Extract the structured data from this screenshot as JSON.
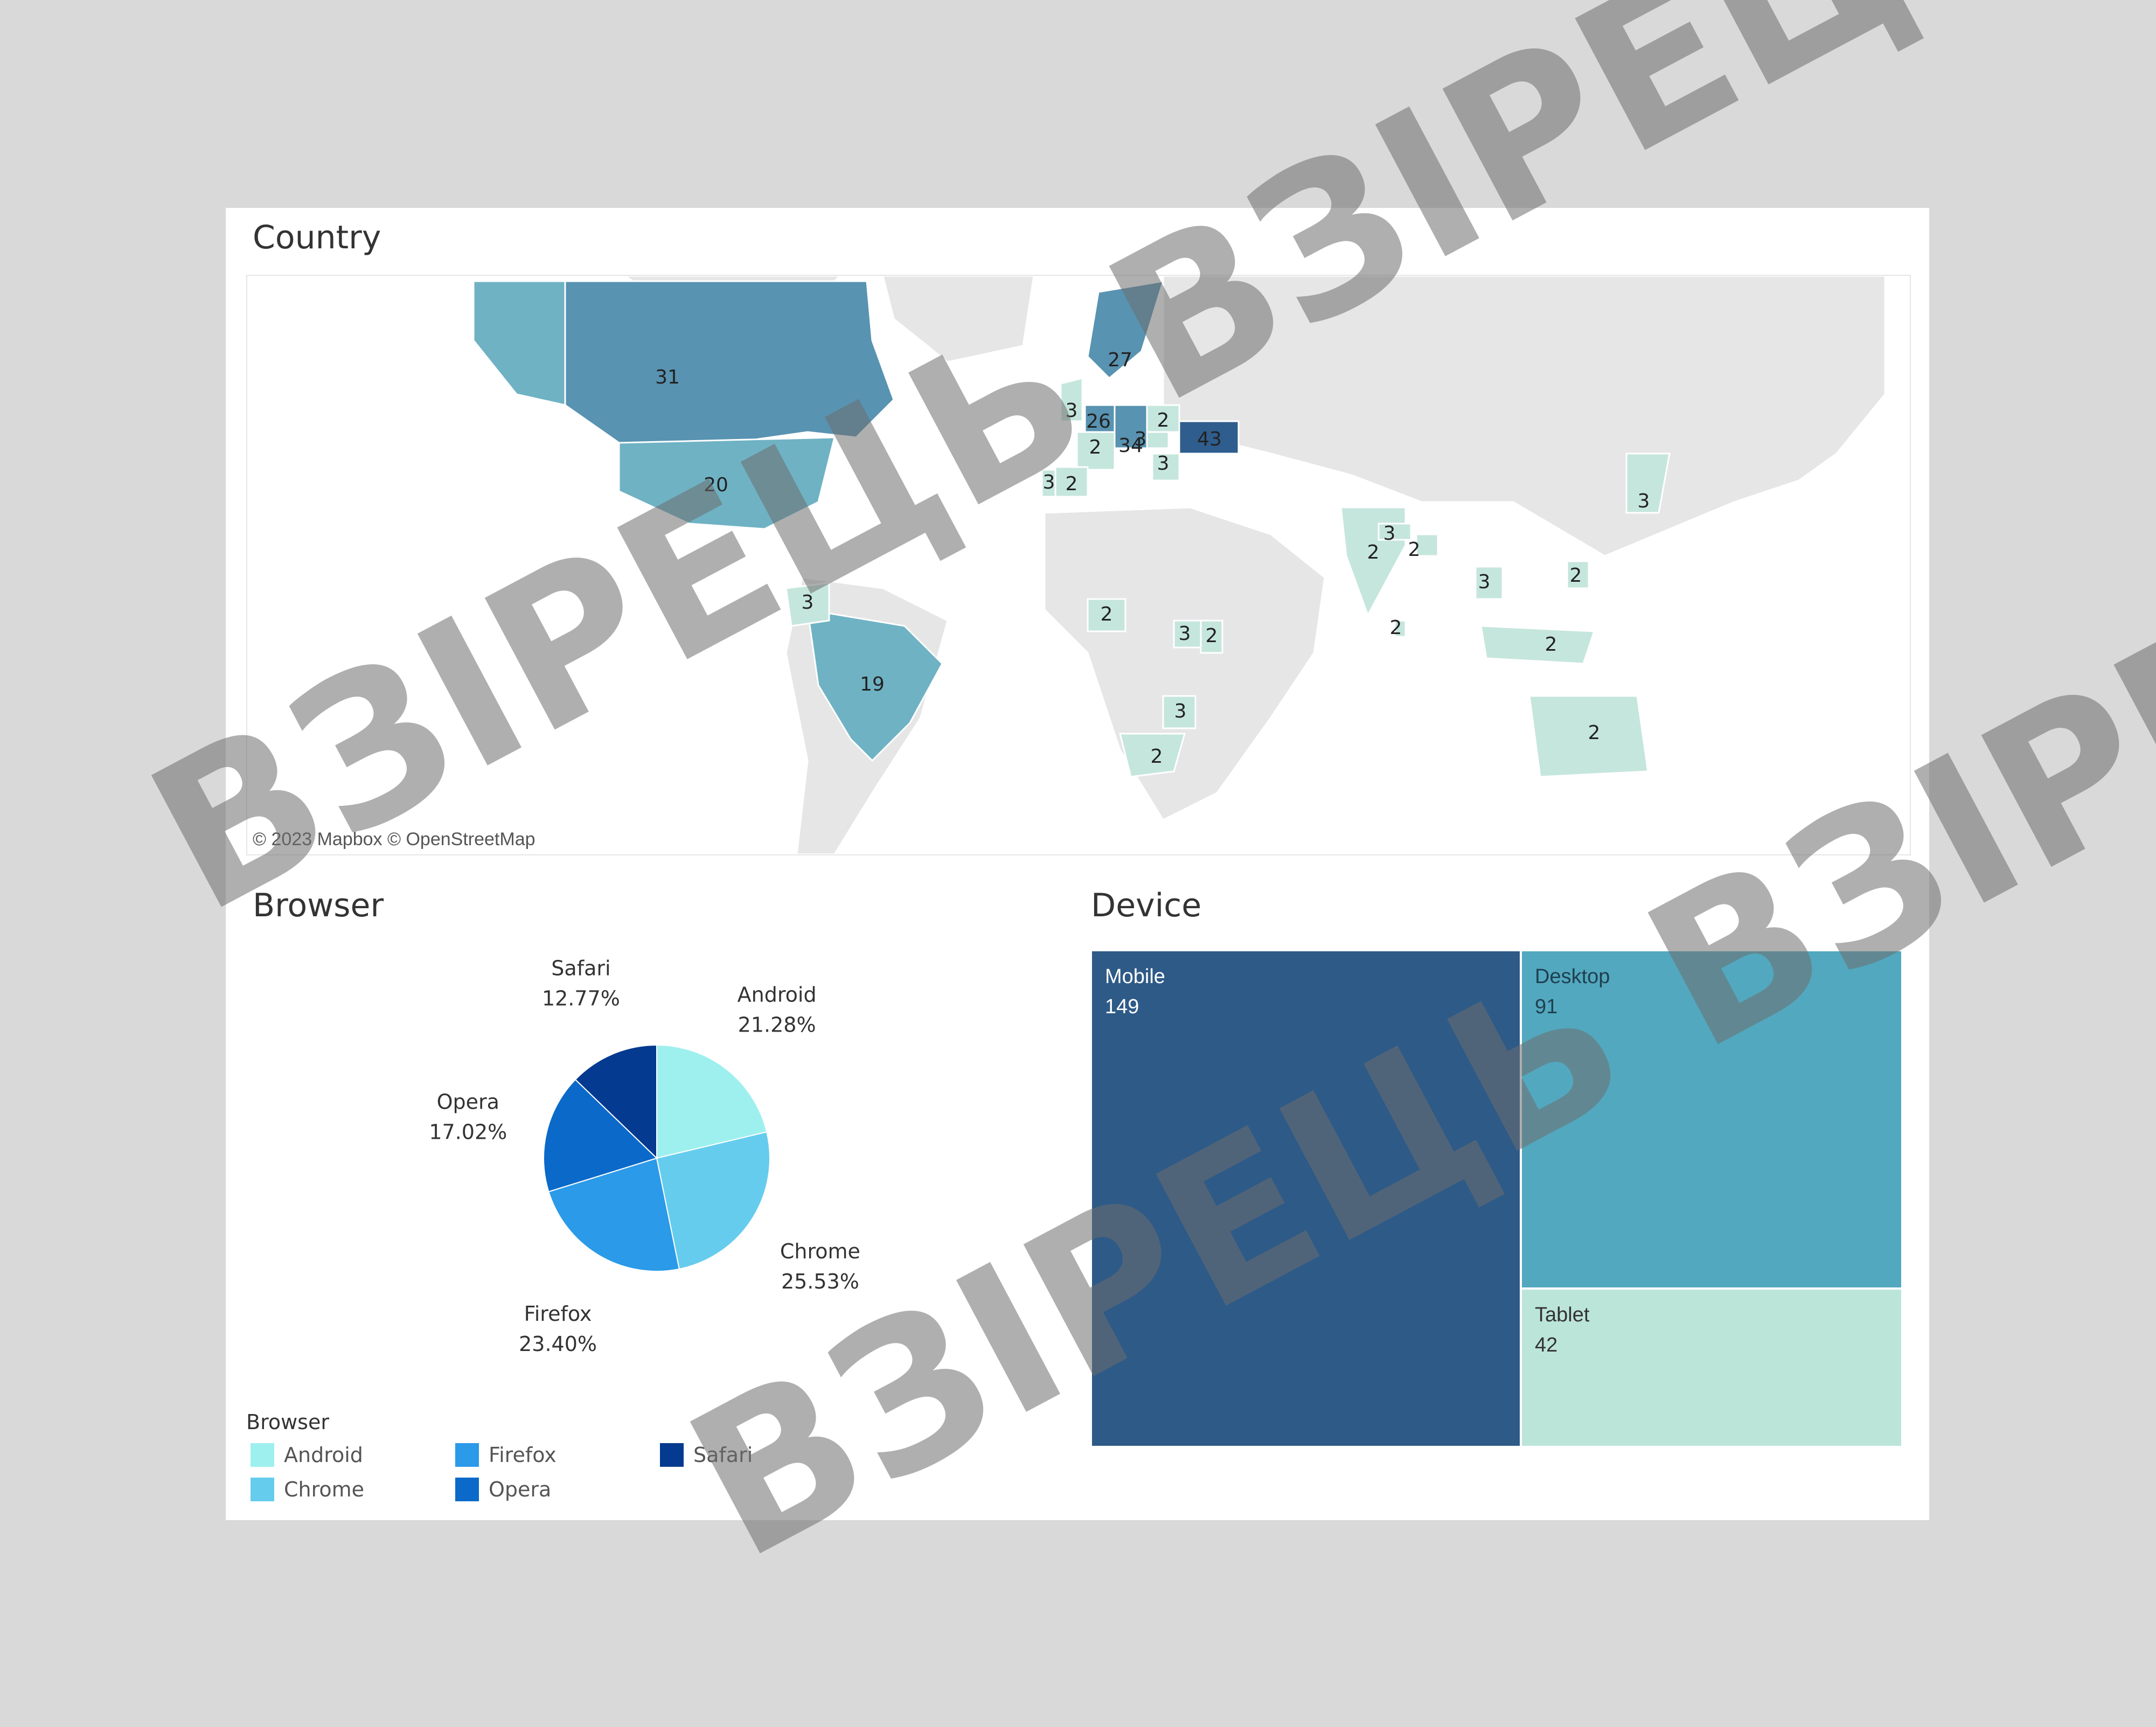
{
  "colors": {
    "page_bg": "#d9d9d9",
    "panel_bg": "#ffffff",
    "land_base": "#e6e6e6",
    "ocean": "#ffffff"
  },
  "chart_data": [
    {
      "type": "map",
      "title": "Country",
      "attribution": "© 2023 Mapbox  © OpenStreetMap",
      "color_scale": [
        "#c5e6dc",
        "#6fb2c4",
        "#2f5d8d"
      ],
      "labels": [
        {
          "country": "Canada",
          "value": 31
        },
        {
          "country": "United States",
          "value": 20
        },
        {
          "country": "Brazil",
          "value": 19
        },
        {
          "country": "Colombia",
          "value": 3
        },
        {
          "country": "Norway",
          "value": 27
        },
        {
          "country": "United Kingdom",
          "value": 3
        },
        {
          "country": "Netherlands",
          "value": 26
        },
        {
          "country": "Germany",
          "value": 34
        },
        {
          "country": "France",
          "value": 2
        },
        {
          "country": "Poland",
          "value": 2
        },
        {
          "country": "Czechia",
          "value": 3
        },
        {
          "country": "Ukraine",
          "value": 43
        },
        {
          "country": "Balkans",
          "value": 3
        },
        {
          "country": "Portugal",
          "value": 3
        },
        {
          "country": "Spain",
          "value": 2
        },
        {
          "country": "Nigeria",
          "value": 2
        },
        {
          "country": "Uganda",
          "value": 3
        },
        {
          "country": "Kenya",
          "value": 2
        },
        {
          "country": "Zimbabwe",
          "value": 3
        },
        {
          "country": "South Africa",
          "value": 2
        },
        {
          "country": "India",
          "value": 2
        },
        {
          "country": "Nepal",
          "value": 3
        },
        {
          "country": "Bangladesh",
          "value": 2
        },
        {
          "country": "Sri Lanka",
          "value": 2
        },
        {
          "country": "Thailand",
          "value": 3
        },
        {
          "country": "Philippines",
          "value": 2
        },
        {
          "country": "Indonesia",
          "value": 2
        },
        {
          "country": "Japan",
          "value": 3
        },
        {
          "country": "Australia",
          "value": 2
        }
      ]
    },
    {
      "type": "pie",
      "title": "Browser",
      "legend_title": "Browser",
      "legend_placement": "bottom-left",
      "slices": [
        {
          "name": "Android",
          "percent_label": "21.28%",
          "value": 21.28,
          "color": "#9ef0ef"
        },
        {
          "name": "Chrome",
          "percent_label": "25.53%",
          "value": 25.53,
          "color": "#66ccee"
        },
        {
          "name": "Firefox",
          "percent_label": "23.40%",
          "value": 23.4,
          "color": "#2b9ae8"
        },
        {
          "name": "Opera",
          "percent_label": "17.02%",
          "value": 17.02,
          "color": "#0b69c9"
        },
        {
          "name": "Safari",
          "percent_label": "12.77%",
          "value": 12.77,
          "color": "#043a8f"
        }
      ]
    },
    {
      "type": "treemap",
      "title": "Device",
      "items": [
        {
          "name": "Mobile",
          "value": 149,
          "value_label": "149",
          "color": "#2e5a87",
          "text_color": "#ffffff"
        },
        {
          "name": "Desktop",
          "value": 91,
          "value_label": "91",
          "color": "#52a8bf",
          "text_color": "#1f3f4f"
        },
        {
          "name": "Tablet",
          "value": 42,
          "value_label": "42",
          "color": "#bce5d9",
          "text_color": "#333333"
        }
      ]
    }
  ],
  "watermark": [
    "ВЗІРЕЦЬ ВЗІРЕЦЬ",
    "ВЗІРЕЦЬ ВЗІРЕЦЬ"
  ]
}
